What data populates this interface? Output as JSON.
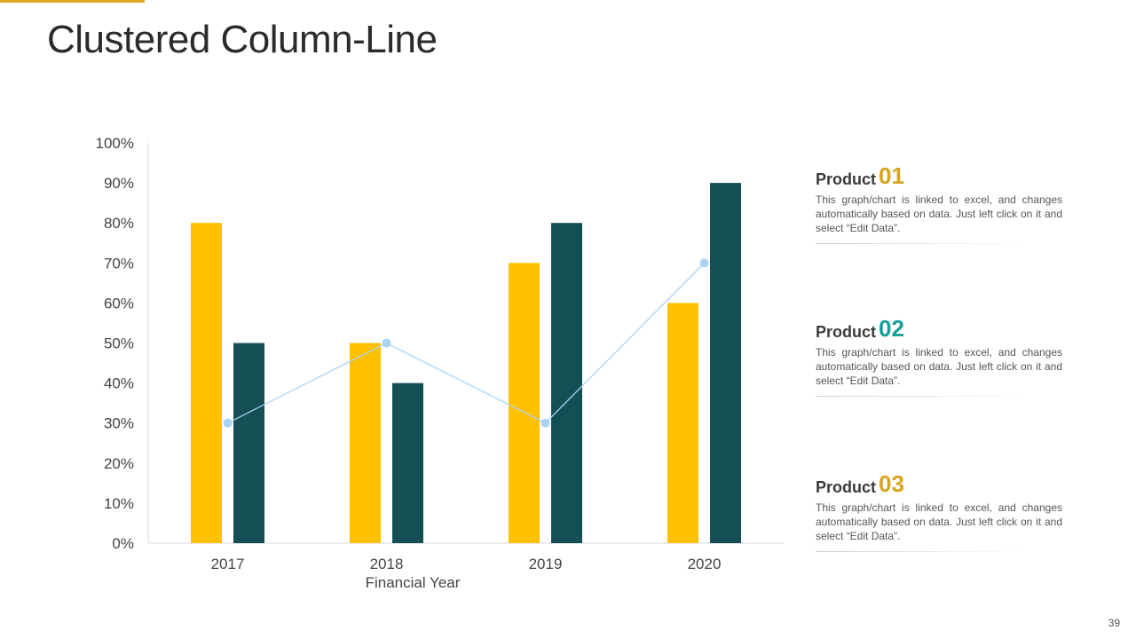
{
  "slide": {
    "title": "Clustered Column-Line",
    "page_number": "39",
    "accent_color": "#E5A823"
  },
  "chart_data": {
    "type": "bar",
    "subtype": "clustered column with line",
    "categories": [
      "2017",
      "2018",
      "2019",
      "2020"
    ],
    "series": [
      {
        "name": "Product 01",
        "kind": "column",
        "color": "#FFC000",
        "values": [
          80,
          50,
          70,
          60
        ]
      },
      {
        "name": "Product 02",
        "kind": "column",
        "color": "#134F55",
        "values": [
          50,
          40,
          80,
          90
        ]
      },
      {
        "name": "Product 03",
        "kind": "line",
        "color": "#A9D3F5",
        "values": [
          30,
          50,
          30,
          70
        ]
      }
    ],
    "y_ticks": [
      "0%",
      "10%",
      "20%",
      "30%",
      "40%",
      "50%",
      "60%",
      "70%",
      "80%",
      "90%",
      "100%"
    ],
    "ylim": [
      0,
      100
    ],
    "xlabel": "Financial Year",
    "ylabel": "",
    "grid": false
  },
  "products": [
    {
      "label": "Product",
      "number": "01",
      "number_color": "#D9A520",
      "description": "This graph/chart is linked to excel, and changes automatically based on data. Just left click on it and select “Edit Data”."
    },
    {
      "label": "Product",
      "number": "02",
      "number_color": "#169C9A",
      "description": "This graph/chart is linked to excel, and changes automatically based on data. Just left click on it and select “Edit Data”."
    },
    {
      "label": "Product",
      "number": "03",
      "number_color": "#D9A520",
      "description": "This graph/chart is linked to excel, and changes automatically based on data. Just left click on it and select “Edit Data”."
    }
  ]
}
